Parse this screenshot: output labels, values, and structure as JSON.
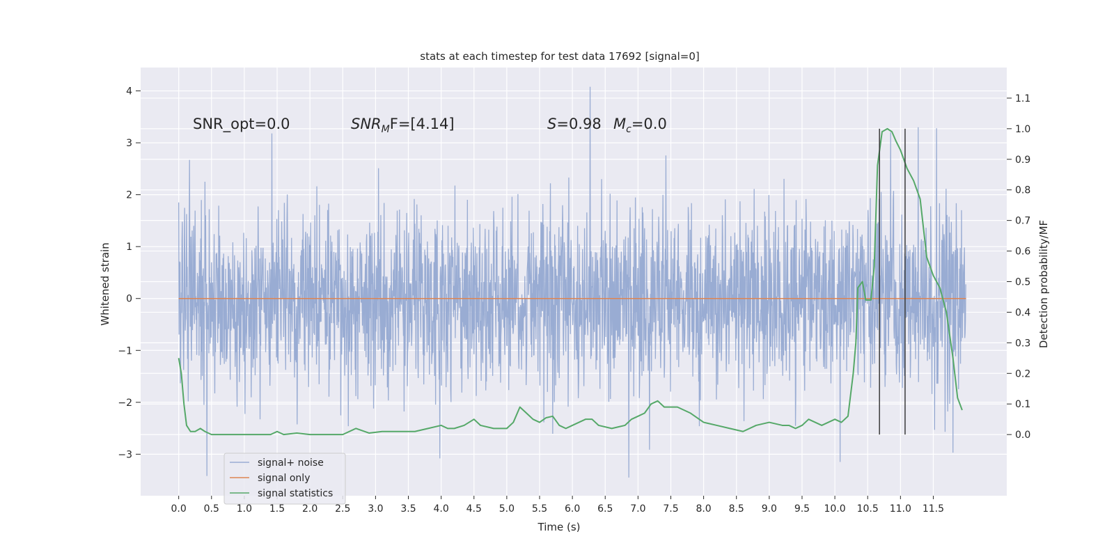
{
  "chart_data": {
    "type": "line",
    "title": "stats at each timestep for test data 17692 [signal=0]",
    "xlabel": "Time (s)",
    "ylabel_left": "Whitened strain",
    "ylabel_right": "Detection probability/MF",
    "xlim": [
      -0.58,
      12.62
    ],
    "ylim_left": [
      -3.8,
      4.45
    ],
    "ylim_right": [
      -0.2,
      1.2
    ],
    "x_ticks": [
      0.0,
      0.5,
      1.0,
      1.5,
      2.0,
      2.5,
      3.0,
      3.5,
      4.0,
      4.5,
      5.0,
      5.5,
      6.0,
      6.5,
      7.0,
      7.5,
      8.0,
      8.5,
      9.0,
      9.5,
      10.0,
      10.5,
      11.0,
      11.5
    ],
    "x_tick_labels": [
      "0.0",
      "0.5",
      "1.0",
      "1.5",
      "2.0",
      "2.5",
      "3.0",
      "3.5",
      "4.0",
      "4.5",
      "5.0",
      "5.5",
      "6.0",
      "6.5",
      "7.0",
      "7.5",
      "8.0",
      "8.5",
      "9.0",
      "9.5",
      "10.0",
      "10.5",
      "11.0",
      "11.5"
    ],
    "y_left_ticks": [
      -3,
      -2,
      -1,
      0,
      1,
      2,
      3,
      4
    ],
    "y_left_tick_labels": [
      "−3",
      "−2",
      "−1",
      "0",
      "1",
      "2",
      "3",
      "4"
    ],
    "y_right_ticks": [
      0.0,
      0.1,
      0.2,
      0.3,
      0.4,
      0.5,
      0.6,
      0.7,
      0.8,
      0.9,
      1.0,
      1.1
    ],
    "y_right_tick_labels": [
      "0.0",
      "0.1",
      "0.2",
      "0.3",
      "0.4",
      "0.5",
      "0.6",
      "0.7",
      "0.8",
      "0.9",
      "1.0",
      "1.1"
    ],
    "grid": true,
    "legend_position": "lower-left",
    "annotations": {
      "snr_opt": "SNR_opt=0.0",
      "snr_mf_main": "SNR",
      "snr_mf_sub": "M",
      "snr_mf_rest": "F=[4.14]",
      "s_italic": "S",
      "s_value": "=0.98",
      "mc_main": "M",
      "mc_sub": "c",
      "mc_value": "=0.0"
    },
    "series": [
      {
        "name": "signal+ noise",
        "axis": "left",
        "color": "#99acd3",
        "duration": 12.0,
        "samples": 2400,
        "noise_std": 0.85,
        "envelope_seed": 17692,
        "notable_peaks": [
          [
            6.27,
            4.08
          ],
          [
            1.42,
            3.18
          ],
          [
            11.27,
            3.3
          ],
          [
            11.55,
            3.28
          ],
          [
            10.85,
            3.2
          ],
          [
            6.86,
            -3.45
          ],
          [
            0.43,
            -3.42
          ],
          [
            10.08,
            -3.15
          ],
          [
            11.8,
            -2.97
          ],
          [
            3.98,
            -3.08
          ]
        ]
      },
      {
        "name": "signal only",
        "axis": "left",
        "color": "#dd8452",
        "x": [
          0.0,
          12.0
        ],
        "y": [
          0.0,
          0.0
        ]
      },
      {
        "name": "signal statistics",
        "axis": "right",
        "color": "#55a868",
        "x": [
          0.0,
          0.04,
          0.08,
          0.12,
          0.18,
          0.25,
          0.33,
          0.4,
          0.5,
          0.6,
          0.8,
          1.0,
          1.2,
          1.4,
          1.5,
          1.6,
          1.8,
          2.0,
          2.2,
          2.5,
          2.7,
          2.9,
          3.1,
          3.3,
          3.6,
          3.8,
          4.0,
          4.1,
          4.2,
          4.35,
          4.5,
          4.6,
          4.8,
          5.0,
          5.1,
          5.2,
          5.3,
          5.4,
          5.5,
          5.6,
          5.7,
          5.8,
          5.9,
          6.0,
          6.1,
          6.2,
          6.3,
          6.4,
          6.6,
          6.8,
          6.9,
          7.0,
          7.1,
          7.2,
          7.3,
          7.4,
          7.6,
          7.8,
          8.0,
          8.2,
          8.4,
          8.6,
          8.8,
          9.0,
          9.2,
          9.3,
          9.4,
          9.5,
          9.6,
          9.7,
          9.8,
          9.9,
          10.0,
          10.1,
          10.2,
          10.28,
          10.32,
          10.35,
          10.42,
          10.47,
          10.55,
          10.6,
          10.65,
          10.72,
          10.8,
          10.87,
          10.93,
          11.0,
          11.1,
          11.2,
          11.3,
          11.4,
          11.5,
          11.6,
          11.7,
          11.8,
          11.87,
          11.94
        ],
        "y": [
          0.25,
          0.2,
          0.1,
          0.03,
          0.01,
          0.01,
          0.02,
          0.01,
          0.0,
          0.0,
          0.0,
          0.0,
          0.0,
          0.0,
          0.01,
          0.0,
          0.005,
          0.0,
          0.0,
          0.0,
          0.02,
          0.005,
          0.01,
          0.01,
          0.01,
          0.02,
          0.03,
          0.02,
          0.02,
          0.03,
          0.05,
          0.03,
          0.02,
          0.02,
          0.04,
          0.09,
          0.07,
          0.05,
          0.04,
          0.055,
          0.06,
          0.03,
          0.02,
          0.03,
          0.04,
          0.05,
          0.05,
          0.03,
          0.02,
          0.03,
          0.05,
          0.06,
          0.07,
          0.1,
          0.11,
          0.09,
          0.09,
          0.07,
          0.04,
          0.03,
          0.02,
          0.01,
          0.03,
          0.04,
          0.03,
          0.03,
          0.02,
          0.03,
          0.05,
          0.04,
          0.03,
          0.04,
          0.05,
          0.04,
          0.06,
          0.2,
          0.3,
          0.48,
          0.5,
          0.44,
          0.44,
          0.55,
          0.88,
          0.99,
          1.0,
          0.99,
          0.96,
          0.93,
          0.87,
          0.83,
          0.77,
          0.58,
          0.52,
          0.48,
          0.4,
          0.25,
          0.12,
          0.08
        ]
      }
    ],
    "vertical_markers": {
      "color": "#3a3a3a",
      "x": [
        10.68,
        11.07
      ],
      "y_range_right": [
        0.0,
        1.0
      ]
    }
  }
}
